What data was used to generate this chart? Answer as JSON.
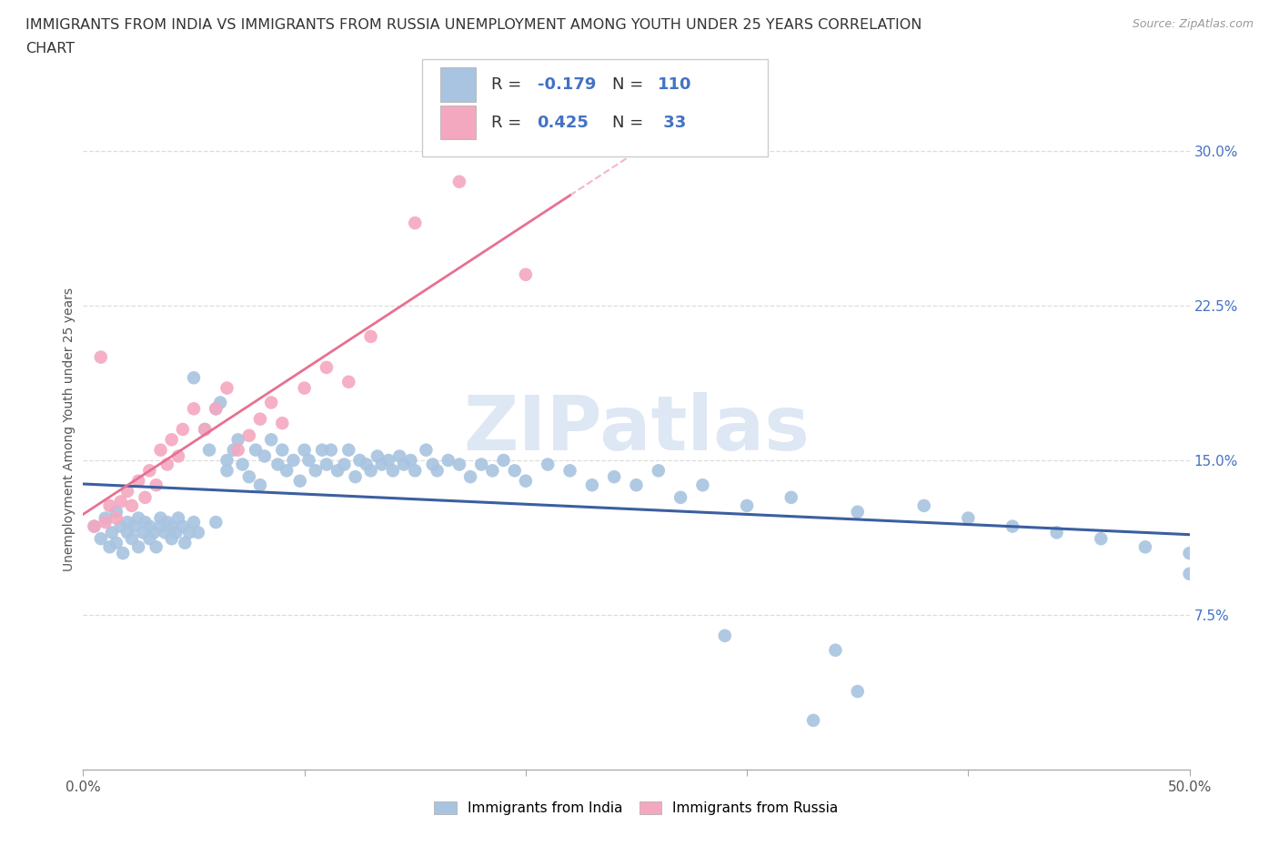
{
  "title_line1": "IMMIGRANTS FROM INDIA VS IMMIGRANTS FROM RUSSIA UNEMPLOYMENT AMONG YOUTH UNDER 25 YEARS CORRELATION",
  "title_line2": "CHART",
  "source_text": "Source: ZipAtlas.com",
  "ylabel": "Unemployment Among Youth under 25 years",
  "xlim": [
    0.0,
    0.5
  ],
  "ylim": [
    0.0,
    0.33
  ],
  "R_india": -0.179,
  "N_india": 110,
  "R_russia": 0.425,
  "N_russia": 33,
  "india_color": "#a8c4e0",
  "russia_color": "#f4a8c0",
  "india_line_color": "#3b5fa0",
  "russia_line_color": "#e87090",
  "right_tick_color": "#4472c4",
  "background_color": "#ffffff",
  "grid_color": "#dddddd",
  "watermark_color": "#c8d8ee",
  "legend_edge_color": "#cccccc",
  "bottom_spine_color": "#aaaaaa",
  "title_color": "#333333",
  "source_color": "#999999",
  "ylabel_color": "#555555"
}
